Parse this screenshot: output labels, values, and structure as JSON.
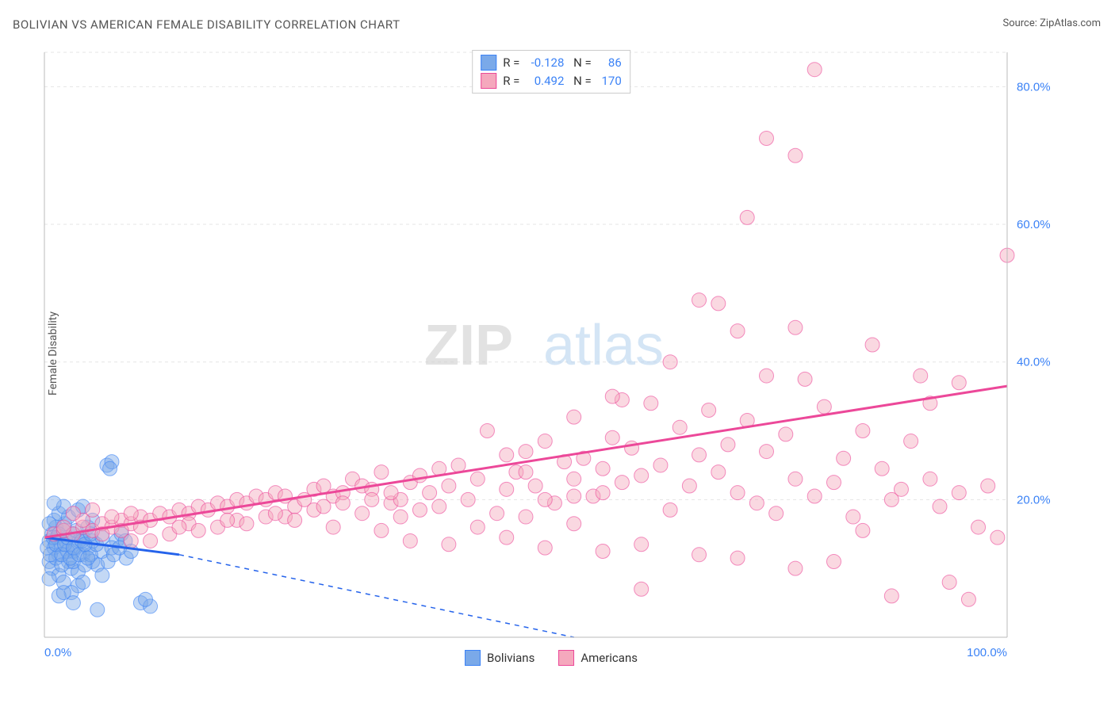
{
  "title": "BOLIVIAN VS AMERICAN FEMALE DISABILITY CORRELATION CHART",
  "source_label": "Source: ",
  "source_name": "ZipAtlas.com",
  "ylabel": "Female Disability",
  "watermark_a": "ZIP",
  "watermark_b": "atlas",
  "chart": {
    "type": "scatter",
    "xlim": [
      0,
      100
    ],
    "ylim": [
      0,
      85
    ],
    "x_ticks": [
      {
        "v": 0,
        "l": "0.0%"
      },
      {
        "v": 100,
        "l": "100.0%"
      }
    ],
    "y_ticks": [
      {
        "v": 20,
        "l": "20.0%"
      },
      {
        "v": 40,
        "l": "40.0%"
      },
      {
        "v": 60,
        "l": "60.0%"
      },
      {
        "v": 80,
        "l": "80.0%"
      }
    ],
    "grid_color": "#e5e5e5",
    "axis_color": "#bbbbbb",
    "tick_label_color": "#3b82f6",
    "marker_radius": 9,
    "marker_opacity": 0.45,
    "series": [
      {
        "name": "Bolivians",
        "fill": "#7aa9e9",
        "stroke": "#3b82f6",
        "trend": {
          "x1": 0,
          "y1": 14.5,
          "x2": 14,
          "y2": 12.0,
          "solid": true,
          "color": "#2563eb",
          "dash_x2": 55,
          "dash_y2": 0
        },
        "stats": {
          "R": "-0.128",
          "N": "86"
        },
        "points": [
          [
            0.5,
            14
          ],
          [
            0.8,
            15
          ],
          [
            1.0,
            13
          ],
          [
            1.2,
            16
          ],
          [
            1.5,
            12
          ],
          [
            1.3,
            14.5
          ],
          [
            1.8,
            13.5
          ],
          [
            2.0,
            15.5
          ],
          [
            2.2,
            14
          ],
          [
            2.5,
            11
          ],
          [
            2.1,
            16.5
          ],
          [
            2.8,
            10
          ],
          [
            3.0,
            12.5
          ],
          [
            3.2,
            13
          ],
          [
            3.5,
            9.5
          ],
          [
            3.0,
            15
          ],
          [
            1.0,
            17
          ],
          [
            1.5,
            18
          ],
          [
            0.5,
            11
          ],
          [
            0.8,
            10
          ],
          [
            4.0,
            12
          ],
          [
            4.5,
            13
          ],
          [
            4.0,
            14.5
          ],
          [
            2.5,
            17.5
          ],
          [
            5.0,
            11
          ],
          [
            5.5,
            10.5
          ],
          [
            5.0,
            14
          ],
          [
            6.0,
            9
          ],
          [
            1.5,
            9
          ],
          [
            2.0,
            8
          ],
          [
            0.5,
            8.5
          ],
          [
            6.0,
            12.5
          ],
          [
            3.5,
            7.5
          ],
          [
            4.0,
            8
          ],
          [
            2.8,
            6.5
          ],
          [
            1.5,
            6
          ],
          [
            2.0,
            6.5
          ],
          [
            6.5,
            25
          ],
          [
            7.0,
            25.5
          ],
          [
            6.8,
            24.5
          ],
          [
            10.0,
            5
          ],
          [
            11.0,
            4.5
          ],
          [
            10.5,
            5.5
          ],
          [
            3.0,
            5
          ],
          [
            5.5,
            4.0
          ],
          [
            4.5,
            16
          ],
          [
            5.0,
            17
          ],
          [
            7.5,
            14
          ],
          [
            8.0,
            15
          ],
          [
            7.0,
            13
          ],
          [
            8.5,
            11.5
          ],
          [
            2.0,
            19
          ],
          [
            1.0,
            19.5
          ],
          [
            3.5,
            18.5
          ],
          [
            4.0,
            19
          ],
          [
            0.5,
            16.5
          ],
          [
            1.2,
            11.5
          ],
          [
            1.8,
            10.5
          ],
          [
            2.4,
            12.5
          ],
          [
            3.0,
            11
          ],
          [
            3.6,
            14
          ],
          [
            4.2,
            10.5
          ],
          [
            4.8,
            12
          ],
          [
            5.4,
            13.5
          ],
          [
            6.0,
            14.5
          ],
          [
            6.6,
            11
          ],
          [
            7.2,
            12
          ],
          [
            7.8,
            13
          ],
          [
            8.4,
            14
          ],
          [
            9.0,
            12.5
          ],
          [
            0.3,
            13
          ],
          [
            0.6,
            12
          ],
          [
            0.9,
            14.5
          ],
          [
            1.2,
            13.5
          ],
          [
            1.5,
            15
          ],
          [
            1.8,
            12
          ],
          [
            2.1,
            13.5
          ],
          [
            2.4,
            14.5
          ],
          [
            2.7,
            11.5
          ],
          [
            3.0,
            13
          ],
          [
            3.3,
            15.5
          ],
          [
            3.6,
            12
          ],
          [
            3.9,
            14
          ],
          [
            4.2,
            13.5
          ],
          [
            4.5,
            11.5
          ],
          [
            4.8,
            15
          ]
        ]
      },
      {
        "name": "Americans",
        "fill": "#f5a8bd",
        "stroke": "#ec4899",
        "trend": {
          "x1": 0,
          "y1": 14.5,
          "x2": 100,
          "y2": 36.5,
          "solid": true,
          "color": "#ec4899"
        },
        "stats": {
          "R": "0.492",
          "N": "170"
        },
        "points": [
          [
            1,
            15
          ],
          [
            2,
            15.5
          ],
          [
            3,
            15
          ],
          [
            4,
            16
          ],
          [
            5,
            15.5
          ],
          [
            6,
            16.5
          ],
          [
            7,
            16
          ],
          [
            8,
            17
          ],
          [
            9,
            16.5
          ],
          [
            10,
            17.5
          ],
          [
            11,
            17
          ],
          [
            12,
            18
          ],
          [
            13,
            17.5
          ],
          [
            14,
            18.5
          ],
          [
            15,
            18
          ],
          [
            16,
            19
          ],
          [
            17,
            18.5
          ],
          [
            18,
            19.5
          ],
          [
            19,
            19
          ],
          [
            20,
            20
          ],
          [
            21,
            19.5
          ],
          [
            22,
            20.5
          ],
          [
            23,
            20
          ],
          [
            24,
            21
          ],
          [
            25,
            20.5
          ],
          [
            26,
            19
          ],
          [
            27,
            20
          ],
          [
            28,
            21.5
          ],
          [
            29,
            22
          ],
          [
            30,
            20.5
          ],
          [
            31,
            21
          ],
          [
            32,
            23
          ],
          [
            33,
            22
          ],
          [
            34,
            21.5
          ],
          [
            35,
            24
          ],
          [
            36,
            19.5
          ],
          [
            37,
            20
          ],
          [
            38,
            22.5
          ],
          [
            39,
            23.5
          ],
          [
            40,
            21
          ],
          [
            41,
            24.5
          ],
          [
            42,
            22
          ],
          [
            43,
            25
          ],
          [
            44,
            20
          ],
          [
            45,
            23
          ],
          [
            46,
            30
          ],
          [
            47,
            18
          ],
          [
            48,
            21.5
          ],
          [
            49,
            24
          ],
          [
            50,
            27
          ],
          [
            51,
            22
          ],
          [
            52,
            28.5
          ],
          [
            53,
            19.5
          ],
          [
            54,
            25.5
          ],
          [
            55,
            23
          ],
          [
            56,
            26
          ],
          [
            57,
            20.5
          ],
          [
            58,
            24.5
          ],
          [
            59,
            29
          ],
          [
            60,
            22.5
          ],
          [
            61,
            27.5
          ],
          [
            62,
            23.5
          ],
          [
            63,
            34
          ],
          [
            64,
            25
          ],
          [
            65,
            18.5
          ],
          [
            66,
            30.5
          ],
          [
            67,
            22
          ],
          [
            68,
            26.5
          ],
          [
            69,
            33
          ],
          [
            70,
            24
          ],
          [
            71,
            28
          ],
          [
            72,
            21
          ],
          [
            73,
            31.5
          ],
          [
            74,
            19.5
          ],
          [
            75,
            27
          ],
          [
            76,
            18
          ],
          [
            77,
            29.5
          ],
          [
            78,
            23
          ],
          [
            79,
            37.5
          ],
          [
            80,
            20.5
          ],
          [
            81,
            33.5
          ],
          [
            82,
            22.5
          ],
          [
            83,
            26
          ],
          [
            84,
            17.5
          ],
          [
            85,
            30
          ],
          [
            86,
            42.5
          ],
          [
            87,
            24.5
          ],
          [
            88,
            20
          ],
          [
            89,
            21.5
          ],
          [
            90,
            28.5
          ],
          [
            91,
            38
          ],
          [
            92,
            23
          ],
          [
            93,
            19
          ],
          [
            94,
            8
          ],
          [
            95,
            37
          ],
          [
            96,
            5.5
          ],
          [
            97,
            16
          ],
          [
            98,
            22
          ],
          [
            99,
            14.5
          ],
          [
            100,
            55.5
          ],
          [
            38,
            14
          ],
          [
            42,
            13.5
          ],
          [
            48,
            14.5
          ],
          [
            52,
            13
          ],
          [
            58,
            12.5
          ],
          [
            62,
            13.5
          ],
          [
            68,
            12
          ],
          [
            72,
            11.5
          ],
          [
            78,
            10
          ],
          [
            82,
            11
          ],
          [
            45,
            16
          ],
          [
            50,
            17.5
          ],
          [
            55,
            16.5
          ],
          [
            60,
            34.5
          ],
          [
            65,
            40
          ],
          [
            68,
            49
          ],
          [
            70,
            48.5
          ],
          [
            73,
            61
          ],
          [
            75,
            72.5
          ],
          [
            78,
            70
          ],
          [
            80,
            82.5
          ],
          [
            85,
            15.5
          ],
          [
            88,
            6
          ],
          [
            92,
            34
          ],
          [
            95,
            21
          ],
          [
            62,
            7
          ],
          [
            55,
            32
          ],
          [
            48,
            26.5
          ],
          [
            35,
            15.5
          ],
          [
            30,
            16
          ],
          [
            25,
            17.5
          ],
          [
            20,
            17
          ],
          [
            15,
            16.5
          ],
          [
            10,
            16
          ],
          [
            8,
            15.5
          ],
          [
            6,
            15
          ],
          [
            4,
            17
          ],
          [
            2,
            16
          ],
          [
            3,
            18
          ],
          [
            5,
            18.5
          ],
          [
            7,
            17.5
          ],
          [
            9,
            18
          ],
          [
            58,
            21
          ],
          [
            59,
            35
          ],
          [
            72,
            44.5
          ],
          [
            75,
            38
          ],
          [
            78,
            45
          ],
          [
            50,
            24
          ],
          [
            52,
            20
          ],
          [
            55,
            20.5
          ],
          [
            9,
            14
          ],
          [
            11,
            14
          ],
          [
            13,
            15
          ],
          [
            14,
            16
          ],
          [
            16,
            15.5
          ],
          [
            18,
            16
          ],
          [
            19,
            17
          ],
          [
            21,
            16.5
          ],
          [
            23,
            17.5
          ],
          [
            24,
            18
          ],
          [
            26,
            17
          ],
          [
            28,
            18.5
          ],
          [
            29,
            19
          ],
          [
            31,
            19.5
          ],
          [
            33,
            18
          ],
          [
            34,
            20
          ],
          [
            36,
            21
          ],
          [
            37,
            17.5
          ],
          [
            39,
            18.5
          ],
          [
            41,
            19
          ]
        ]
      }
    ]
  },
  "bottom_legend": [
    {
      "label": "Bolivians",
      "fill": "#7aa9e9",
      "stroke": "#3b82f6"
    },
    {
      "label": "Americans",
      "fill": "#f5a8bd",
      "stroke": "#ec4899"
    }
  ]
}
